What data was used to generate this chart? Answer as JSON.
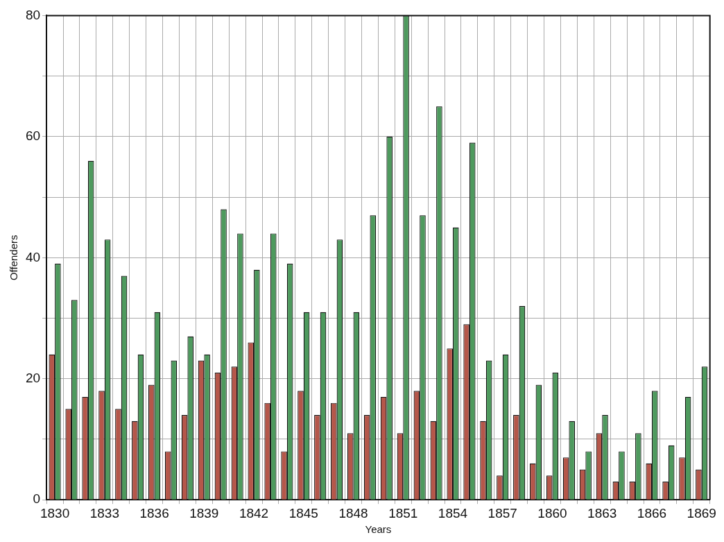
{
  "chart_data": {
    "type": "bar",
    "xlabel": "Years",
    "ylabel": "Offenders",
    "categories": [
      "1830",
      null,
      null,
      "1833",
      null,
      null,
      "1836",
      null,
      null,
      "1839",
      null,
      null,
      "1842",
      null,
      null,
      "1845",
      null,
      null,
      "1848",
      null,
      null,
      "1851",
      null,
      null,
      "1854",
      null,
      null,
      "1857",
      null,
      null,
      "1860",
      null,
      null,
      "1863",
      null,
      null,
      "1866",
      null,
      null,
      "1869"
    ],
    "series": [
      {
        "color": "#b5574a",
        "values": [
          24,
          15,
          17,
          18,
          15,
          13,
          19,
          8,
          14,
          23,
          21,
          22,
          26,
          16,
          8,
          18,
          14,
          16,
          11,
          14,
          17,
          11,
          18,
          13,
          25,
          29,
          13,
          4,
          14,
          6,
          4,
          7,
          5,
          11,
          3,
          3,
          6,
          3,
          7,
          5
        ]
      },
      {
        "color": "#4e9a5e",
        "values": [
          39,
          33,
          56,
          43,
          37,
          24,
          31,
          23,
          27,
          24,
          48,
          44,
          38,
          44,
          39,
          31,
          31,
          43,
          31,
          47,
          60,
          80,
          47,
          65,
          45,
          59,
          23,
          24,
          32,
          19,
          21,
          13,
          8,
          14,
          8,
          11,
          18,
          9,
          17,
          22
        ]
      }
    ],
    "ylim": [
      0,
      80
    ],
    "yticks": [
      0,
      {
        "value": 10,
        "label": null
      },
      20,
      {
        "value": 30,
        "label": null
      },
      40,
      {
        "value": 50,
        "label": null
      },
      60,
      {
        "value": 70,
        "label": null
      },
      80
    ],
    "grid": true,
    "legend": false
  }
}
